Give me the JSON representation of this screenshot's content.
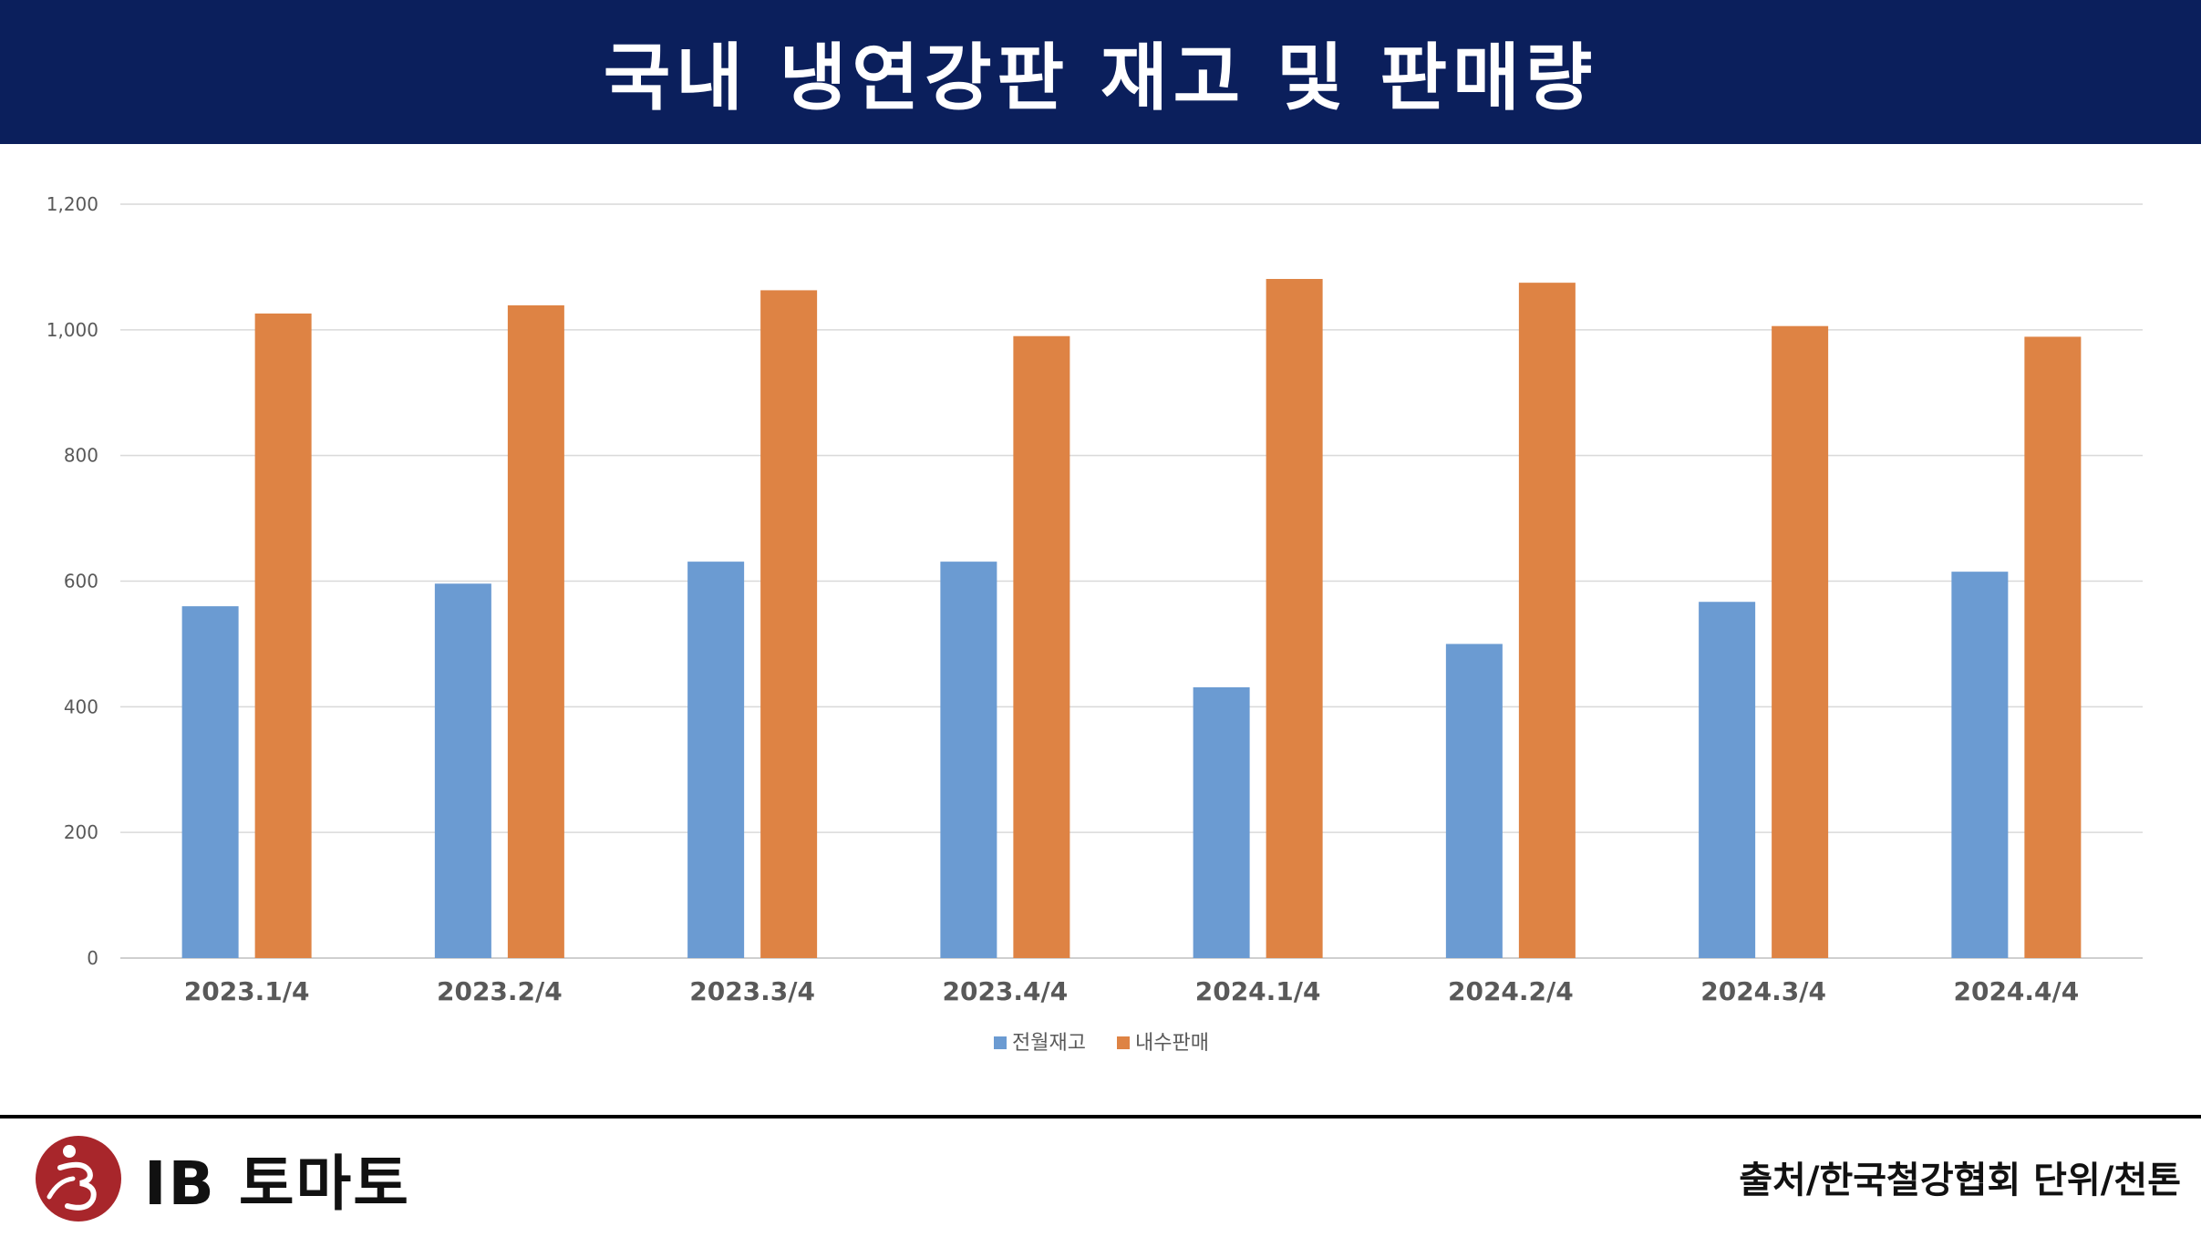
{
  "header": {
    "title": "국내 냉연강판 재고 및 판매량"
  },
  "chart_data": {
    "type": "bar",
    "categories": [
      "2023.1/4",
      "2023.2/4",
      "2023.3/4",
      "2023.4/4",
      "2024.1/4",
      "2024.2/4",
      "2024.3/4",
      "2024.4/4"
    ],
    "series": [
      {
        "name": "전월재고",
        "color": "#6b9bd2",
        "values": [
          560,
          596,
          631,
          631,
          431,
          500,
          567,
          615
        ]
      },
      {
        "name": "내수판매",
        "color": "#de8344",
        "values": [
          1026,
          1039,
          1063,
          990,
          1081,
          1075,
          1006,
          989
        ]
      }
    ],
    "ylim": [
      0,
      1200
    ],
    "yticks": [
      0,
      200,
      400,
      600,
      800,
      1000,
      1200
    ],
    "ytick_labels": [
      "0",
      "200",
      "400",
      "600",
      "800",
      "1,000",
      "1,200"
    ],
    "grid": true,
    "legend": "bottom",
    "xlabel": "",
    "ylabel": ""
  },
  "footer": {
    "logo_text": "IB 토마토",
    "source": "출처/한국철강협회 단위/천톤"
  }
}
